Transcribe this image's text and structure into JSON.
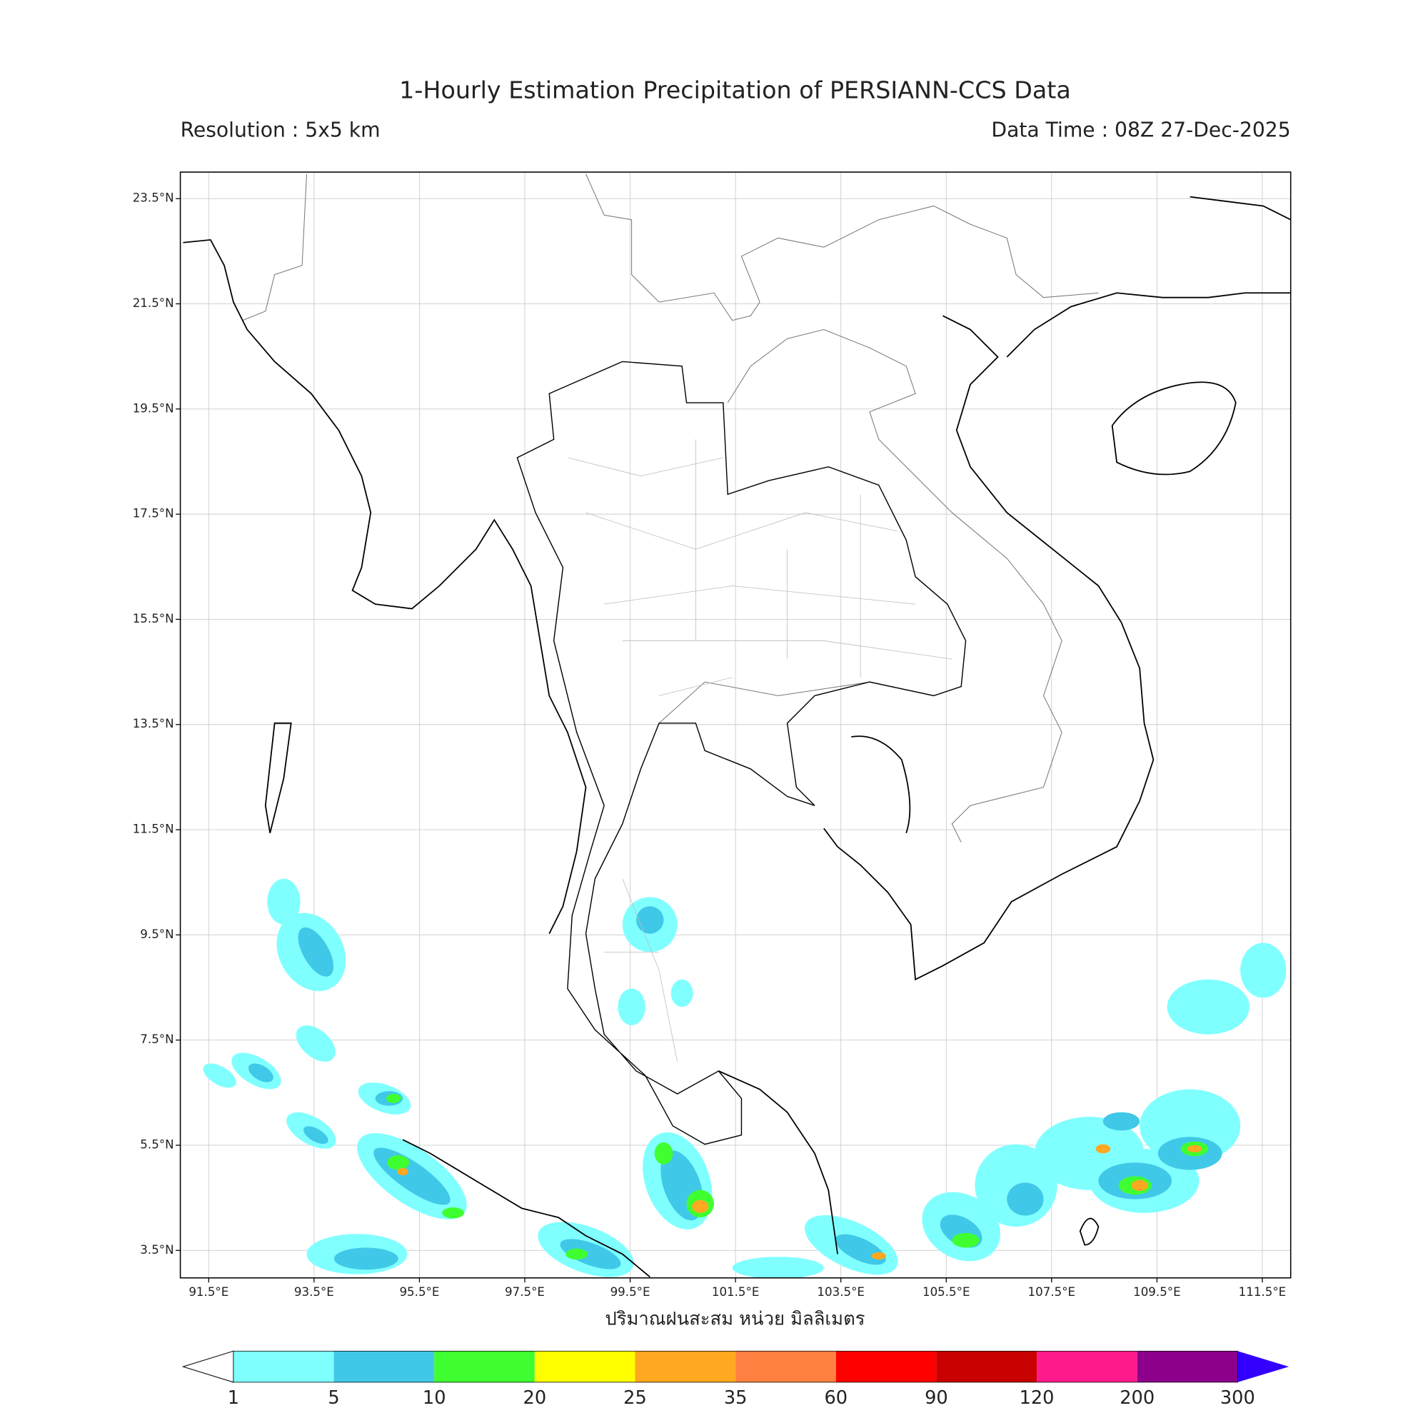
{
  "map": {
    "title": "1-Hourly Estimation Precipitation of PERSIANN-CCS Data",
    "resolution": "Resolution : 5x5 km",
    "data_time": "Data Time : 08Z 27-Dec-2025",
    "lon_labels": [
      "91.5°E",
      "93.5°E",
      "95.5°E",
      "97.5°E",
      "99.5°E",
      "101.5°E",
      "103.5°E",
      "105.5°E",
      "107.5°E",
      "109.5°E",
      "111.5°E"
    ],
    "lat_labels": [
      "23.5°N",
      "21.5°N",
      "19.5°N",
      "17.5°N",
      "15.5°N",
      "13.5°N",
      "11.5°N",
      "9.5°N",
      "7.5°N",
      "5.5°N",
      "3.5°N"
    ],
    "axis_label": "ปริมาณฝนสะสม หน่วย มิลลิเมตร",
    "colorbar": {
      "labels": [
        "1",
        "5",
        "10",
        "20",
        "25",
        "35",
        "60",
        "90",
        "120",
        "200",
        "300"
      ],
      "colors": [
        "#80ffff",
        "#40c8e8",
        "#40ff30",
        "#ffff00",
        "#ffa820",
        "#ff8040",
        "#ff0000",
        "#c80000",
        "#ff1a8c",
        "#8c008c"
      ],
      "under_color": "#ffffff",
      "over_color": "#3300ff"
    }
  }
}
